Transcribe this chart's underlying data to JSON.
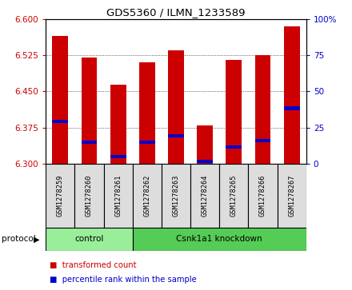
{
  "title": "GDS5360 / ILMN_1233589",
  "samples": [
    "GSM1278259",
    "GSM1278260",
    "GSM1278261",
    "GSM1278262",
    "GSM1278263",
    "GSM1278264",
    "GSM1278265",
    "GSM1278266",
    "GSM1278267"
  ],
  "bar_tops": [
    6.565,
    6.52,
    6.463,
    6.51,
    6.535,
    6.38,
    6.515,
    6.525,
    6.585
  ],
  "bar_bottoms": [
    6.3,
    6.3,
    6.3,
    6.3,
    6.3,
    6.3,
    6.3,
    6.3,
    6.3
  ],
  "blue_markers": [
    6.388,
    6.345,
    6.315,
    6.345,
    6.358,
    6.305,
    6.335,
    6.348,
    6.415
  ],
  "bar_color": "#cc0000",
  "blue_color": "#0000cc",
  "ylim_left": [
    6.3,
    6.6
  ],
  "ylim_right": [
    0,
    100
  ],
  "yticks_left": [
    6.3,
    6.375,
    6.45,
    6.525,
    6.6
  ],
  "yticks_right": [
    0,
    25,
    50,
    75,
    100
  ],
  "ylabel_right_labels": [
    "0",
    "25",
    "50",
    "75",
    "100%"
  ],
  "protocol_groups": [
    {
      "label": "control",
      "start": 0,
      "end": 3,
      "color": "#99ee99"
    },
    {
      "label": "Csnk1a1 knockdown",
      "start": 3,
      "end": 9,
      "color": "#55cc55"
    }
  ],
  "protocol_label": "protocol",
  "legend_items": [
    {
      "color": "#cc0000",
      "label": "transformed count"
    },
    {
      "color": "#0000cc",
      "label": "percentile rank within the sample"
    }
  ],
  "bar_width": 0.55,
  "tick_label_color_left": "#cc0000",
  "tick_label_color_right": "#0000cc",
  "sample_box_color": "#dddddd",
  "grid_linestyle": "dotted"
}
